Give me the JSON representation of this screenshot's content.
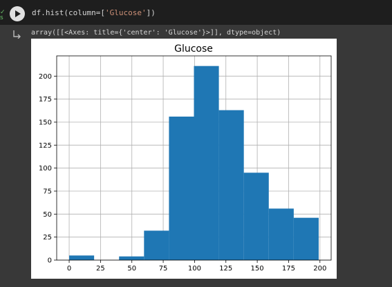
{
  "code": {
    "prefix": "df.hist(column=[",
    "string": "'Glucose'",
    "suffix": "])"
  },
  "output": {
    "text": "array([[<Axes: title={'center': 'Glucose'}>]], dtype=object)"
  },
  "icons": {
    "run": "play-icon",
    "status": "check-icon",
    "output": "output-arrow-icon"
  },
  "colors": {
    "bar": "#1f77b4",
    "cell_bg": "#383838",
    "code_bg": "#1e1e1e"
  },
  "chart_data": {
    "type": "bar",
    "title": "Glucose",
    "bins": [
      [
        0,
        19.9,
        5
      ],
      [
        19.9,
        39.8,
        0
      ],
      [
        39.8,
        59.7,
        4
      ],
      [
        59.7,
        79.6,
        32
      ],
      [
        79.6,
        99.5,
        156
      ],
      [
        99.5,
        119.4,
        211
      ],
      [
        119.4,
        139.3,
        163
      ],
      [
        139.3,
        159.2,
        95
      ],
      [
        159.2,
        179.1,
        56
      ],
      [
        179.1,
        199,
        46
      ]
    ],
    "xlim": [
      -9.95,
      208.95
    ],
    "ylim": [
      0,
      222
    ],
    "xticks": [
      0,
      25,
      50,
      75,
      100,
      125,
      150,
      175,
      200
    ],
    "yticks": [
      0,
      25,
      50,
      75,
      100,
      125,
      150,
      175,
      200
    ],
    "grid": true
  }
}
